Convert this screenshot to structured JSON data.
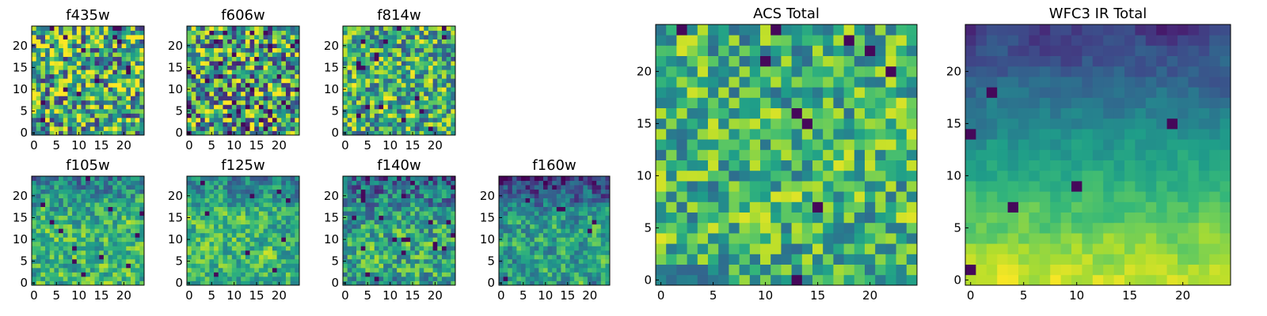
{
  "figure": {
    "colormap": "viridis",
    "colors": {
      "low": "#440154",
      "mid": "#21908d",
      "high": "#fde725"
    }
  },
  "chart_data": [
    {
      "type": "heatmap",
      "title": "f435w",
      "grid_size": 25,
      "xticks": [
        "0",
        "5",
        "10",
        "15",
        "20"
      ],
      "yticks": [
        "0",
        "5",
        "10",
        "15",
        "20"
      ],
      "xlim": [
        0,
        24
      ],
      "ylim": [
        0,
        24
      ],
      "texture": {
        "seed": 11,
        "base": 0.62,
        "noise": 0.6,
        "smooth": 0.0,
        "dark_rate": 0.03
      }
    },
    {
      "type": "heatmap",
      "title": "f606w",
      "grid_size": 25,
      "xticks": [
        "0",
        "5",
        "10",
        "15",
        "20"
      ],
      "yticks": [
        "0",
        "5",
        "10",
        "15",
        "20"
      ],
      "xlim": [
        0,
        24
      ],
      "ylim": [
        0,
        24
      ],
      "texture": {
        "seed": 23,
        "base": 0.58,
        "noise": 0.62,
        "smooth": 0.0,
        "dark_rate": 0.05
      }
    },
    {
      "type": "heatmap",
      "title": "f814w",
      "grid_size": 25,
      "xticks": [
        "0",
        "5",
        "10",
        "15",
        "20"
      ],
      "yticks": [
        "0",
        "5",
        "10",
        "15",
        "20"
      ],
      "xlim": [
        0,
        24
      ],
      "ylim": [
        0,
        24
      ],
      "texture": {
        "seed": 37,
        "base": 0.62,
        "noise": 0.55,
        "smooth": 0.15,
        "dark_rate": 0.03
      }
    },
    {
      "type": "heatmap",
      "title": "f105w",
      "grid_size": 25,
      "xticks": [
        "0",
        "5",
        "10",
        "15",
        "20"
      ],
      "yticks": [
        "0",
        "5",
        "10",
        "15",
        "20"
      ],
      "xlim": [
        0,
        24
      ],
      "ylim": [
        0,
        24
      ],
      "texture": {
        "seed": 41,
        "base": 0.66,
        "noise": 0.42,
        "smooth": 0.35,
        "dark_rate": 0.015,
        "top_dark": 0.25
      }
    },
    {
      "type": "heatmap",
      "title": "f125w",
      "grid_size": 25,
      "xticks": [
        "0",
        "5",
        "10",
        "15",
        "20"
      ],
      "yticks": [
        "0",
        "5",
        "10",
        "15",
        "20"
      ],
      "xlim": [
        0,
        24
      ],
      "ylim": [
        0,
        24
      ],
      "texture": {
        "seed": 53,
        "base": 0.66,
        "noise": 0.42,
        "smooth": 0.4,
        "dark_rate": 0.015,
        "top_dark": 0.2
      }
    },
    {
      "type": "heatmap",
      "title": "f140w",
      "grid_size": 25,
      "xticks": [
        "0",
        "5",
        "10",
        "15",
        "20"
      ],
      "yticks": [
        "0",
        "5",
        "10",
        "15",
        "20"
      ],
      "xlim": [
        0,
        24
      ],
      "ylim": [
        0,
        24
      ],
      "texture": {
        "seed": 67,
        "base": 0.6,
        "noise": 0.5,
        "smooth": 0.35,
        "dark_rate": 0.025,
        "top_dark": 0.3
      }
    },
    {
      "type": "heatmap",
      "title": "f160w",
      "grid_size": 25,
      "xticks": [
        "0",
        "5",
        "10",
        "15",
        "20"
      ],
      "yticks": [
        "0",
        "5",
        "10",
        "15",
        "20"
      ],
      "xlim": [
        0,
        24
      ],
      "ylim": [
        0,
        24
      ],
      "texture": {
        "seed": 79,
        "base": 0.58,
        "noise": 0.45,
        "smooth": 0.45,
        "dark_rate": 0.02,
        "top_dark": 0.45
      }
    },
    {
      "type": "heatmap",
      "title": "ACS Total",
      "grid_size": 25,
      "xticks": [
        "0",
        "5",
        "10",
        "15",
        "20"
      ],
      "yticks": [
        "0",
        "5",
        "10",
        "15",
        "20"
      ],
      "xlim": [
        0,
        24
      ],
      "ylim": [
        0,
        24
      ],
      "texture": {
        "seed": 97,
        "base": 0.64,
        "noise": 0.45,
        "smooth": 0.2,
        "dark_rate": 0.025
      }
    },
    {
      "type": "heatmap",
      "title": "WFC3 IR Total",
      "grid_size": 25,
      "xticks": [
        "0",
        "5",
        "10",
        "15",
        "20"
      ],
      "yticks": [
        "0",
        "5",
        "10",
        "15",
        "20"
      ],
      "xlim": [
        0,
        24
      ],
      "ylim": [
        0,
        24
      ],
      "texture": {
        "seed": 113,
        "base": 0.55,
        "noise": 0.18,
        "smooth": 0.6,
        "dark_rate": 0.015,
        "vertical_gradient": 0.75
      }
    }
  ]
}
